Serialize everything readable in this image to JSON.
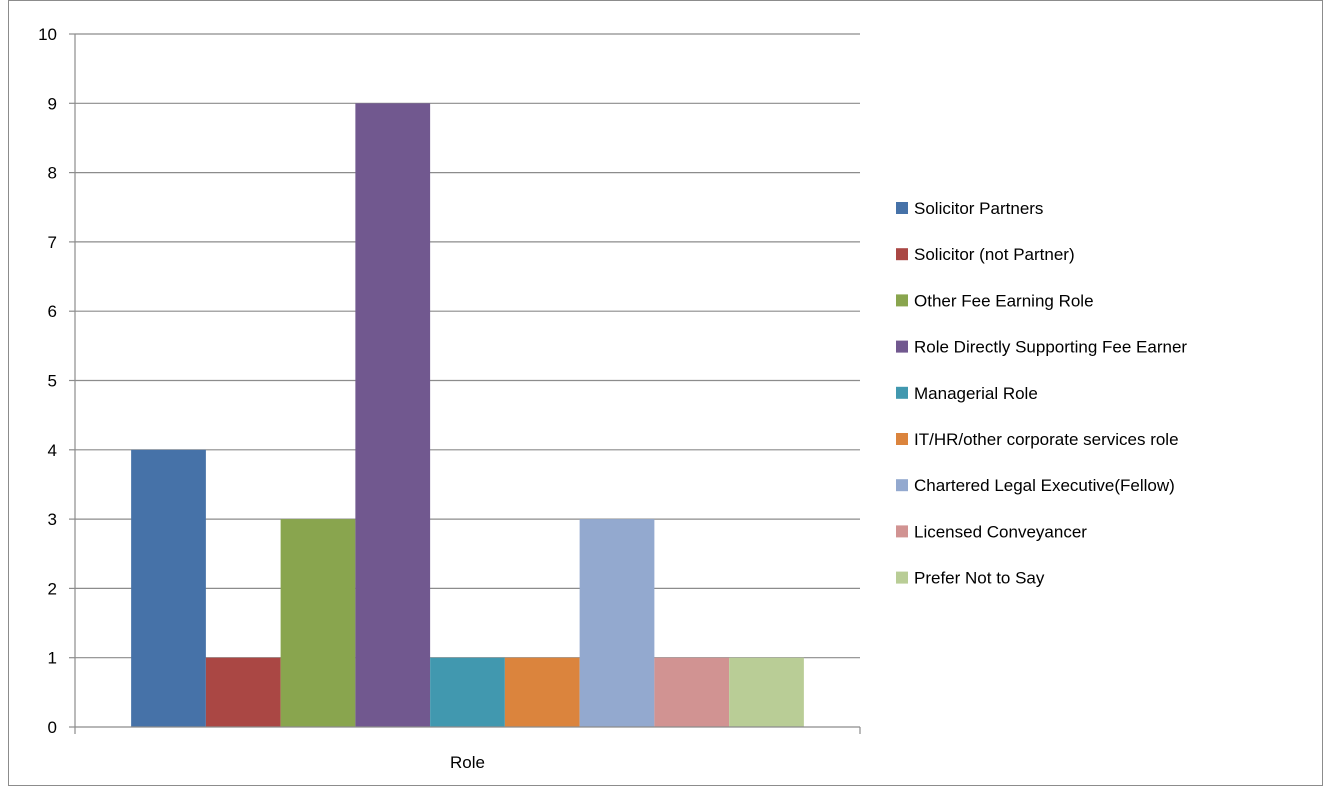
{
  "chart_data": {
    "type": "bar",
    "title": "",
    "xlabel": "",
    "ylabel": "",
    "categories": [
      "Role"
    ],
    "ylim": [
      0,
      10
    ],
    "yticks": [
      "0",
      "1",
      "2",
      "3",
      "4",
      "5",
      "6",
      "7",
      "8",
      "9",
      "10"
    ],
    "grid": true,
    "legend_position": "right",
    "series": [
      {
        "name": "Solicitor Partners",
        "values": [
          4
        ],
        "color": "#4672A8"
      },
      {
        "name": "Solicitor (not Partner)",
        "values": [
          1
        ],
        "color": "#AA4744"
      },
      {
        "name": "Other Fee Earning Role",
        "values": [
          3
        ],
        "color": "#89A54E"
      },
      {
        "name": "Role Directly Supporting Fee Earner",
        "values": [
          9
        ],
        "color": "#71588F"
      },
      {
        "name": "Managerial Role",
        "values": [
          1
        ],
        "color": "#4198AF"
      },
      {
        "name": "IT/HR/other corporate services role",
        "values": [
          1
        ],
        "color": "#DB843D"
      },
      {
        "name": "Chartered Legal Executive(Fellow)",
        "values": [
          3
        ],
        "color": "#93A9CF"
      },
      {
        "name": "Licensed Conveyancer",
        "values": [
          1
        ],
        "color": "#D19392"
      },
      {
        "name": "Prefer Not to Say",
        "values": [
          1
        ],
        "color": "#B9CD96"
      }
    ]
  }
}
